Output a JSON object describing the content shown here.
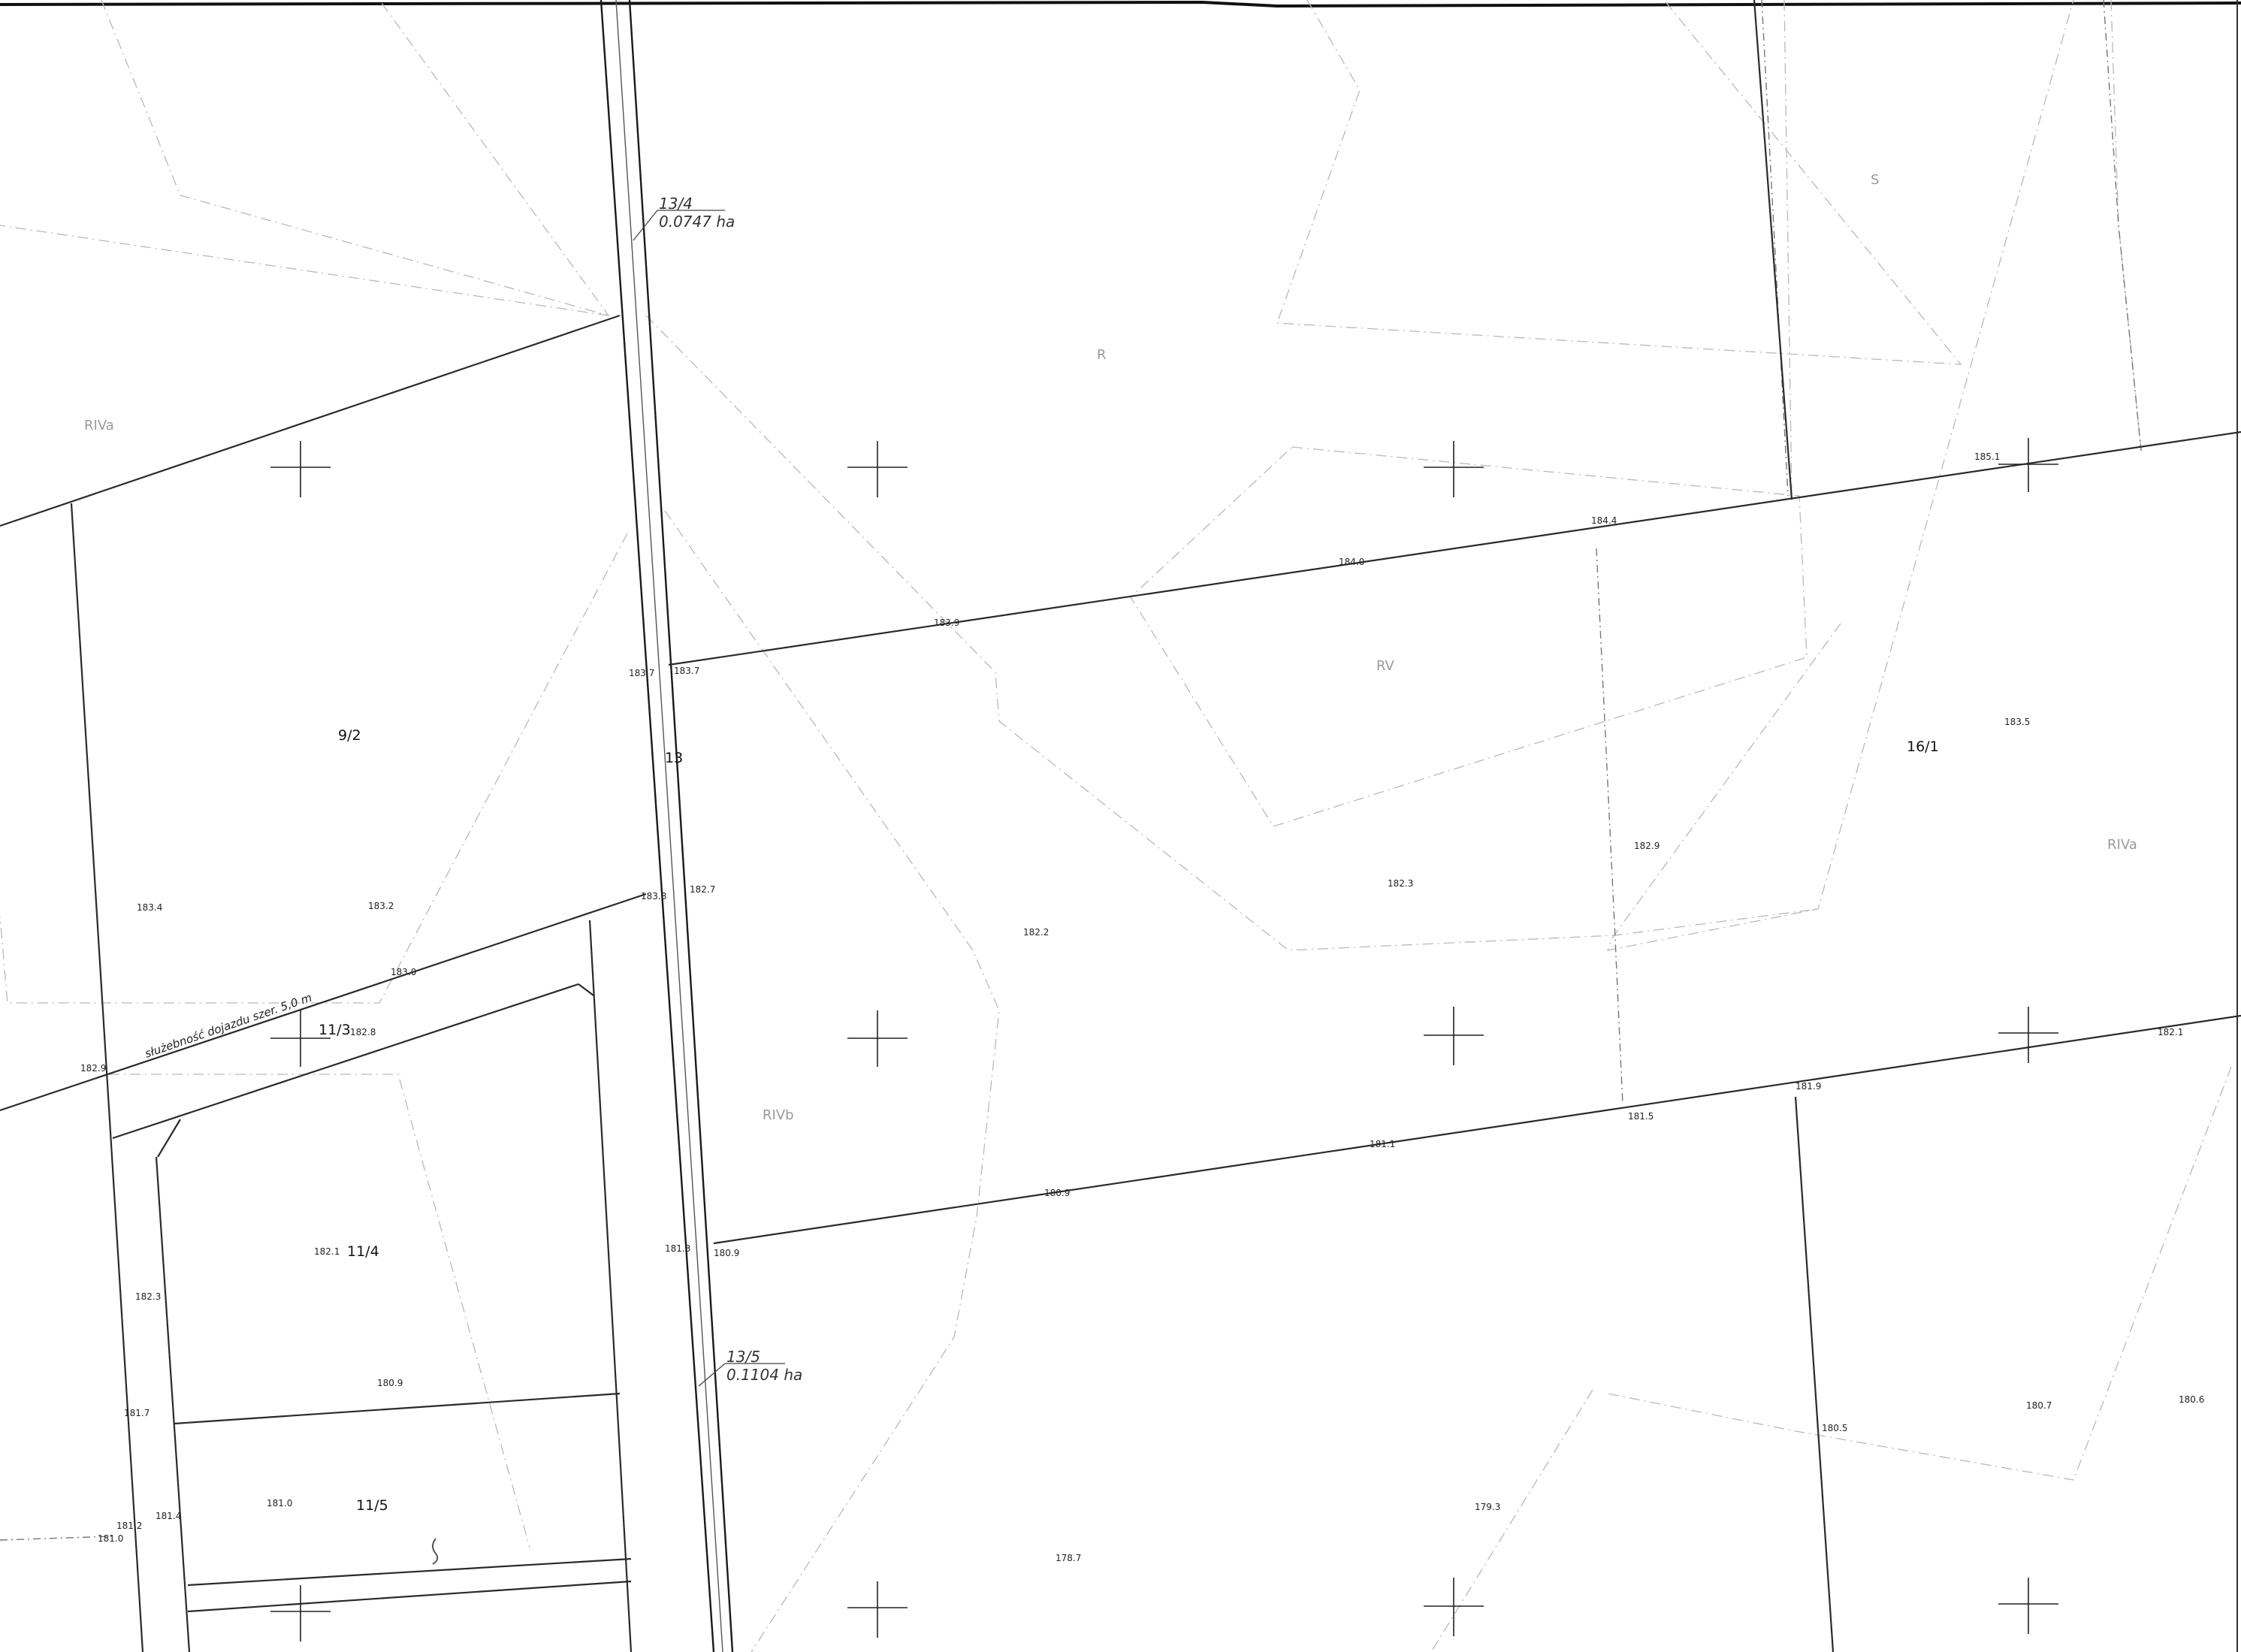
{
  "map": {
    "parcels": {
      "p9_2": "9/2",
      "p11_3": "11/3",
      "p11_4": "11/4",
      "p11_5": "11/5",
      "p13": "13",
      "p16_1": "16/1"
    },
    "area_labels": {
      "a13_4": {
        "id": "13/4",
        "area": "0.0747 ha"
      },
      "a13_5": {
        "id": "13/5",
        "area": "0.1104 ha"
      }
    },
    "soil_classes": {
      "rva_left": "RIVa",
      "r": "R",
      "s": "S",
      "rv": "RV",
      "rvb": "RIVb",
      "rva_right": "RIVa"
    },
    "easement_note": "służebność dojazdu szer. 5,0 m",
    "elevations": {
      "e1": "185.1",
      "e2": "184.4",
      "e3": "184.0",
      "e4": "183.9",
      "e5": "183.7",
      "e6": "183.7",
      "e7": "183.5",
      "e8": "182.9",
      "e9": "182.3",
      "e10": "182.2",
      "e11": "183.8",
      "e12": "182.7",
      "e13": "183.4",
      "e14": "183.2",
      "e15": "183.0",
      "e16": "182.8",
      "e17": "182.9",
      "e18": "182.1",
      "e19": "181.9",
      "e20": "181.5",
      "e21": "181.1",
      "e22": "180.9",
      "e23": "181.3",
      "e24": "180.9",
      "e25": "182.1",
      "e26": "182.3",
      "e27": "180.9",
      "e28": "181.7",
      "e29": "181.0",
      "e30": "181.4",
      "e31": "181.2",
      "e32": "181.0",
      "e33": "180.5",
      "e34": "180.7",
      "e35": "180.6",
      "e36": "179.3",
      "e37": "178.7"
    }
  }
}
